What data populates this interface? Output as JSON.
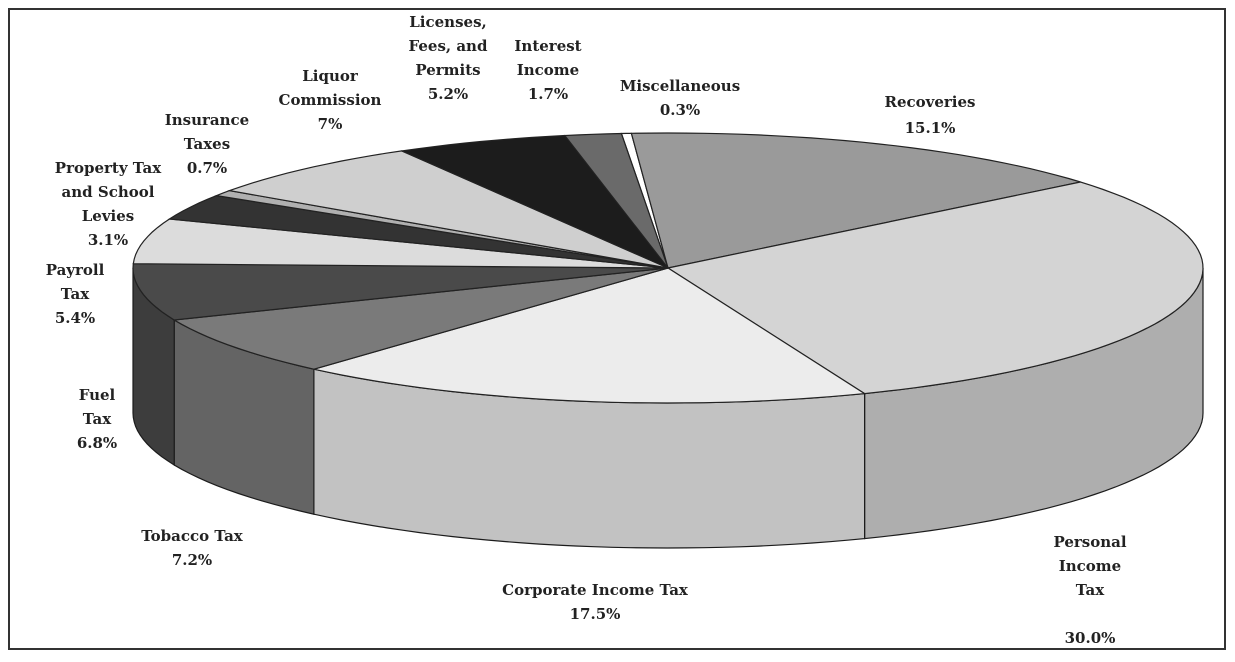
{
  "chart_data": {
    "type": "pie3d",
    "categories": [
      "Miscellaneous",
      "Recoveries",
      "Personal Income Tax",
      "Corporate Income Tax",
      "Tobacco Tax",
      "Fuel Tax",
      "Payroll Tax",
      "Property Tax and School Levies",
      "Insurance Taxes",
      "Liquor Commission",
      "Licenses, Fees, and Permits",
      "Interest Income"
    ],
    "values": [
      0.3,
      15.1,
      30.0,
      17.5,
      7.2,
      6.8,
      5.4,
      3.1,
      0.7,
      7,
      5.2,
      1.7
    ],
    "value_labels": [
      "0.3%",
      "15.1%",
      "30.0%",
      "17.5%",
      "7.2%",
      "6.8%",
      "5.4%",
      "3.1%",
      "0.7%",
      "7%",
      "5.2%",
      "1.7%"
    ],
    "colors": [
      "#ffffff",
      "#9a9a9a",
      "#d4d4d4",
      "#ececec",
      "#7a7a7a",
      "#4a4a4a",
      "#dcdcdc",
      "#333333",
      "#b0b0b0",
      "#cfcfcf",
      "#1c1c1c",
      "#6a6a6a"
    ]
  }
}
